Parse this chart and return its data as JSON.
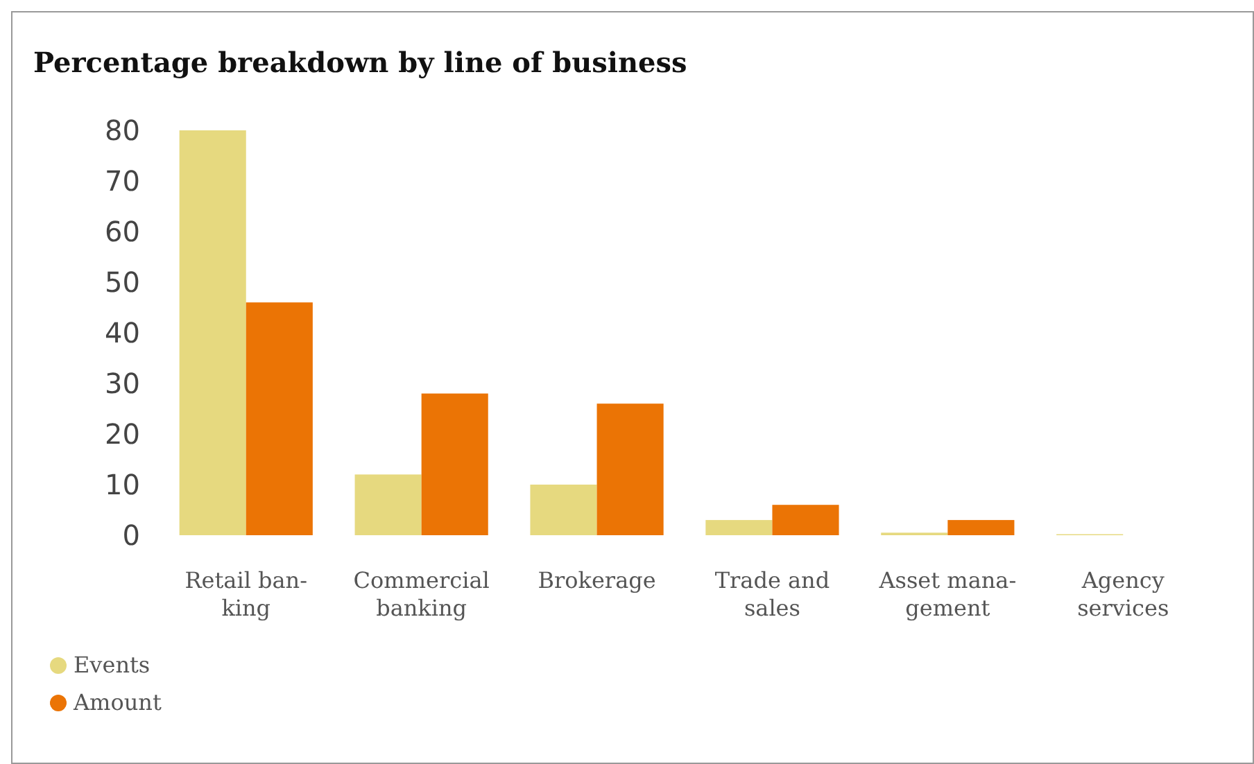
{
  "chart_data": {
    "type": "bar",
    "title": "Percentage breakdown by line of business",
    "categories": [
      "Retail ban-\nking",
      "Commercial\nbanking",
      "Brokerage",
      "Trade and\nsales",
      "Asset mana-\ngement",
      "Agency\nservices"
    ],
    "series": [
      {
        "name": "Events",
        "color": "#e6d97f",
        "values": [
          80,
          12,
          10,
          3,
          0.5,
          0.2
        ]
      },
      {
        "name": "Amount",
        "color": "#eb7405",
        "values": [
          46,
          28,
          26,
          6,
          3,
          0
        ]
      }
    ],
    "ylim": [
      0,
      80
    ],
    "yticks": [
      0,
      10,
      20,
      30,
      40,
      50,
      60,
      70,
      80
    ],
    "grid": false,
    "legend": "bottom left"
  }
}
